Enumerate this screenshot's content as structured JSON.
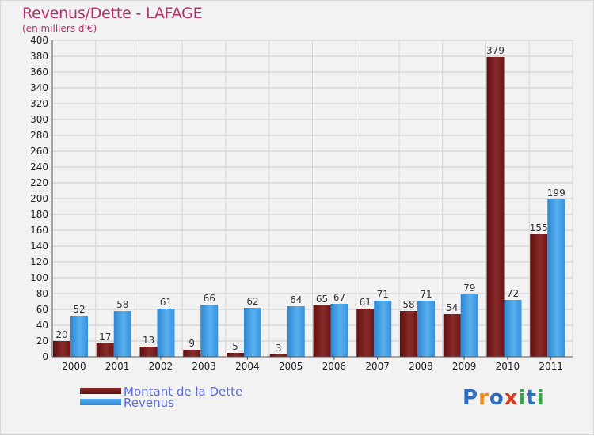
{
  "title": "Revenus/Dette - LAFAGE",
  "subtitle": "(en milliers d'€)",
  "brand": {
    "letters": [
      "P",
      "r",
      "o",
      "x",
      "i",
      "t",
      "i"
    ],
    "colors": [
      "#2b6ec2",
      "#f08a1c",
      "#2b6ec2",
      "#e03b1c",
      "#3aa64b",
      "#2b6ec2",
      "#3aa64b"
    ]
  },
  "chart_data": {
    "type": "bar",
    "title": "Revenus/Dette - LAFAGE",
    "ylabel": "(en milliers d'€)",
    "xlabel": "",
    "ylim": [
      0,
      400
    ],
    "yticks": [
      "0",
      "20",
      "40",
      "60",
      "80",
      "100",
      "120",
      "140",
      "160",
      "180",
      "200",
      "220",
      "240",
      "260",
      "280",
      "300",
      "320",
      "340",
      "360",
      "380",
      "400"
    ],
    "categories": [
      "2000",
      "2001",
      "2002",
      "2003",
      "2004",
      "2005",
      "2006",
      "2007",
      "2008",
      "2009",
      "2010",
      "2011"
    ],
    "series": [
      {
        "name": "Montant de la Dette",
        "color": "#7a1f1f",
        "values": [
          20,
          17,
          13,
          9,
          5,
          3,
          65,
          61,
          58,
          54,
          379,
          155
        ],
        "labels": [
          "20",
          "17",
          "13",
          "9",
          "5",
          "3",
          "65",
          "61",
          "58",
          "54",
          "379",
          "155"
        ]
      },
      {
        "name": "Revenus",
        "color": "#3d9be3",
        "values": [
          52,
          58,
          61,
          66,
          62,
          64,
          67,
          71,
          71,
          79,
          72,
          199
        ],
        "labels": [
          "52",
          "58",
          "61",
          "66",
          "62",
          "64",
          "67",
          "71",
          "71",
          "79",
          "72",
          "199"
        ]
      }
    ],
    "legend": "bottom-left",
    "grid": true
  }
}
